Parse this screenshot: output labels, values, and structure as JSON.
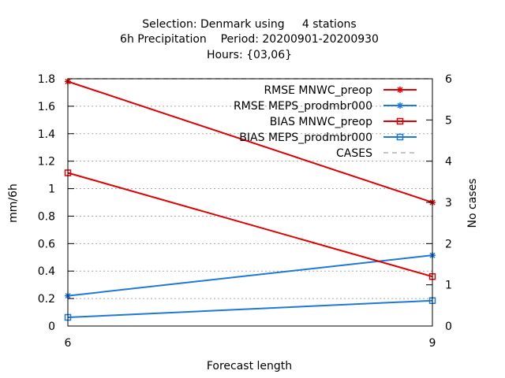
{
  "chart_data": {
    "type": "line",
    "title_lines": [
      "Selection: Denmark using     4 stations",
      "6h Precipitation    Period: 20200901-20200930",
      "Hours: {03,06}"
    ],
    "xlabel": "Forecast length",
    "ylabel": "mm/6h",
    "y2label": "No cases",
    "x": [
      6,
      9
    ],
    "xlim": [
      6,
      9
    ],
    "ylim": [
      0,
      1.8
    ],
    "y2lim": [
      0,
      6
    ],
    "xticks": [
      6,
      9
    ],
    "yticks": [
      0,
      0.2,
      0.4,
      0.6,
      0.8,
      1,
      1.2,
      1.4,
      1.6,
      1.8
    ],
    "y2ticks": [
      0,
      1,
      2,
      3,
      4,
      5,
      6
    ],
    "grid": true,
    "legend_position": "top-right",
    "series": [
      {
        "name": "RMSE MNWC_preop",
        "axis": "y",
        "marker": "star",
        "color": "#e00000",
        "values": [
          1.78,
          0.9
        ]
      },
      {
        "name": "RMSE MEPS_prodmbr000",
        "axis": "y",
        "marker": "star",
        "color": "#1e78d8",
        "values": [
          0.22,
          0.515
        ]
      },
      {
        "name": "BIAS MNWC_preop",
        "axis": "y",
        "marker": "square",
        "color": "#e00000",
        "values": [
          1.115,
          0.36
        ]
      },
      {
        "name": "BIAS MEPS_prodmbr000",
        "axis": "y",
        "marker": "square",
        "color": "#1e78d8",
        "values": [
          0.063,
          0.185
        ]
      },
      {
        "name": "CASES",
        "axis": "y2",
        "marker": "none",
        "color": "#b0b0b0",
        "dashed": true,
        "values": [
          6,
          6
        ]
      }
    ]
  }
}
